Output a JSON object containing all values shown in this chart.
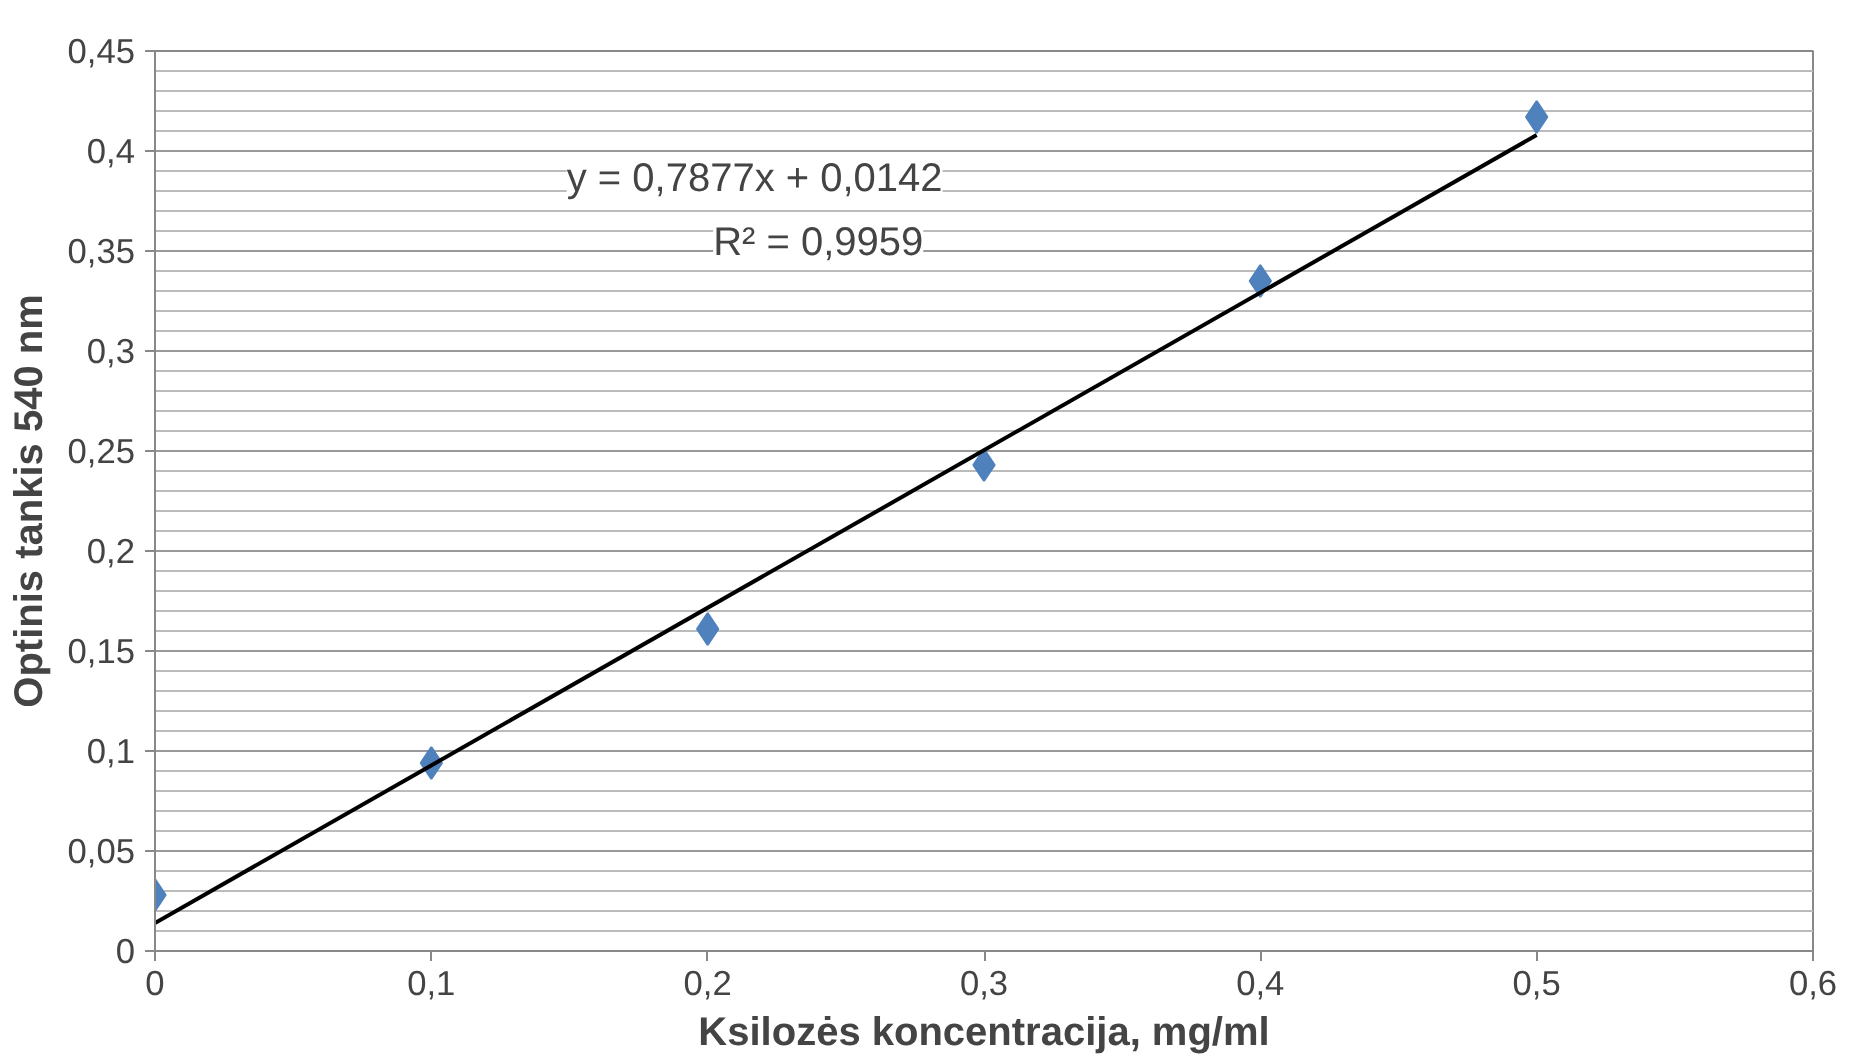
{
  "chart_data": {
    "type": "scatter",
    "xlabel": "Ksilozės koncentracija, mg/ml",
    "ylabel": "Optinis tankis 540 nm",
    "x": [
      0,
      0.1,
      0.2,
      0.3,
      0.4,
      0.5
    ],
    "series": [
      {
        "color": "#4f81bd",
        "marker": "diamond",
        "values": [
          0.028,
          0.094,
          0.161,
          0.243,
          0.335,
          0.417
        ]
      },
      {
        "type": "line",
        "color": "#000000",
        "x": [
          0,
          0.5
        ],
        "values": [
          0.014,
          0.408
        ]
      }
    ],
    "annotations": [
      "y = 0,7877x + 0,0142",
      "R² = 0,9959"
    ],
    "xlim": [
      0,
      0.6
    ],
    "ylim": [
      0,
      0.45
    ],
    "xticks": [
      {
        "value": 0,
        "label": "0"
      },
      {
        "value": 0.1,
        "label": "0,1"
      },
      {
        "value": 0.2,
        "label": "0,2"
      },
      {
        "value": 0.3,
        "label": "0,3"
      },
      {
        "value": 0.4,
        "label": "0,4"
      },
      {
        "value": 0.5,
        "label": "0,5"
      },
      {
        "value": 0.6,
        "label": "0,6"
      }
    ],
    "yticks": [
      {
        "value": 0,
        "label": "0"
      },
      {
        "value": 0.05,
        "label": "0,05"
      },
      {
        "value": 0.1,
        "label": "0,1"
      },
      {
        "value": 0.15,
        "label": "0,15"
      },
      {
        "value": 0.2,
        "label": "0,2"
      },
      {
        "value": 0.25,
        "label": "0,25"
      },
      {
        "value": 0.3,
        "label": "0,3"
      },
      {
        "value": 0.35,
        "label": "0,35"
      },
      {
        "value": 0.4,
        "label": "0,4"
      },
      {
        "value": 0.45,
        "label": "0,45"
      }
    ],
    "grid": "y"
  }
}
